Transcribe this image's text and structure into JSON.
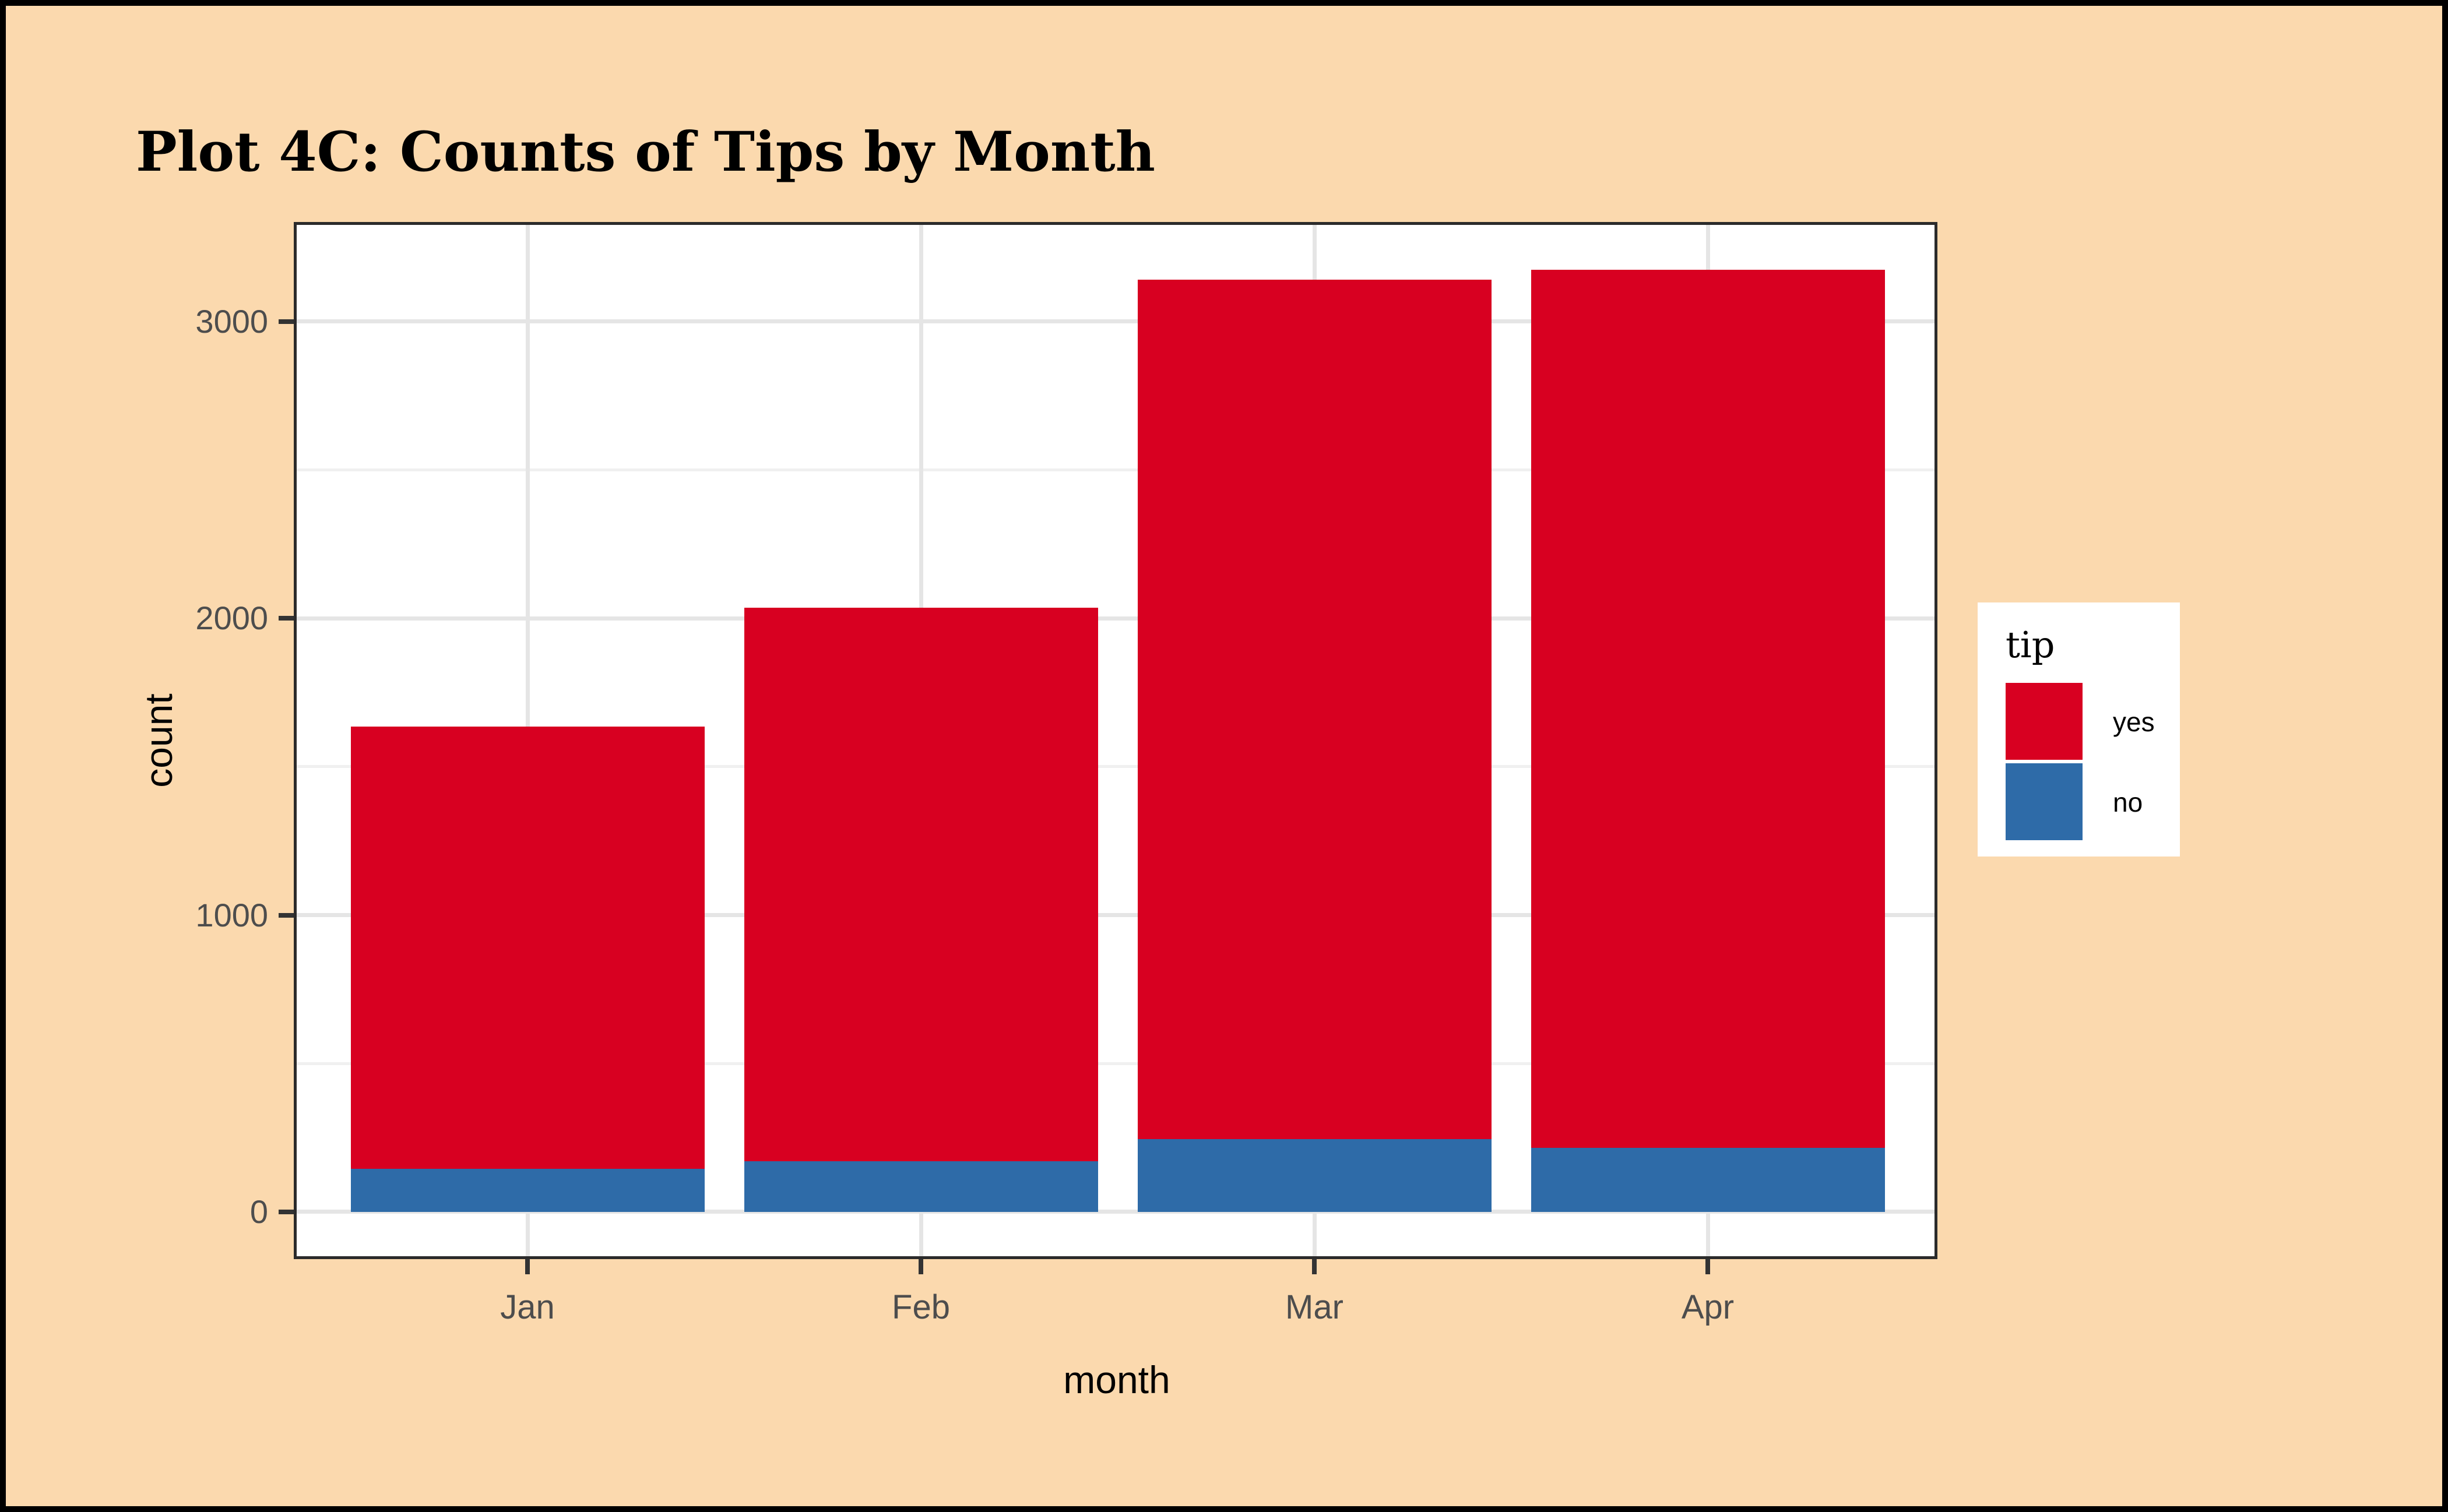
{
  "title": "Plot 4C: Counts of Tips by Month",
  "chart_data": {
    "type": "bar",
    "stacked": true,
    "title": "Plot 4C: Counts of Tips by Month",
    "categories": [
      "Jan",
      "Feb",
      "Mar",
      "Apr"
    ],
    "series": [
      {
        "name": "yes",
        "color": "#D80021",
        "values": [
          1490,
          1865,
          2895,
          2960
        ]
      },
      {
        "name": "no",
        "color": "#2E6BA8",
        "values": [
          145,
          170,
          245,
          215
        ]
      }
    ],
    "stack_bottom_to_top": [
      "no",
      "yes"
    ],
    "totals": [
      1635,
      2035,
      3140,
      3175
    ],
    "xlabel": "month",
    "ylabel": "count",
    "y_ticks": [
      0,
      1000,
      2000,
      3000
    ],
    "y_minor_ticks": [
      500,
      1500,
      2500
    ],
    "ylim": [
      0,
      3335
    ],
    "grid": "major+minor",
    "legend": {
      "title": "tip",
      "position": "right",
      "entries": [
        {
          "label": "yes",
          "color": "#D80021"
        },
        {
          "label": "no",
          "color": "#2E6BA8"
        }
      ]
    },
    "colors": {
      "background": "#FBD9AE",
      "frame": "#000000",
      "panel_background": "#FFFFFF",
      "panel_border": "#2B2B2B",
      "grid_major": "#E5E5E5",
      "grid_minor": "#F0F0F0",
      "tick_text": "#4D4D4D",
      "axis_title_text": "#000000"
    }
  }
}
